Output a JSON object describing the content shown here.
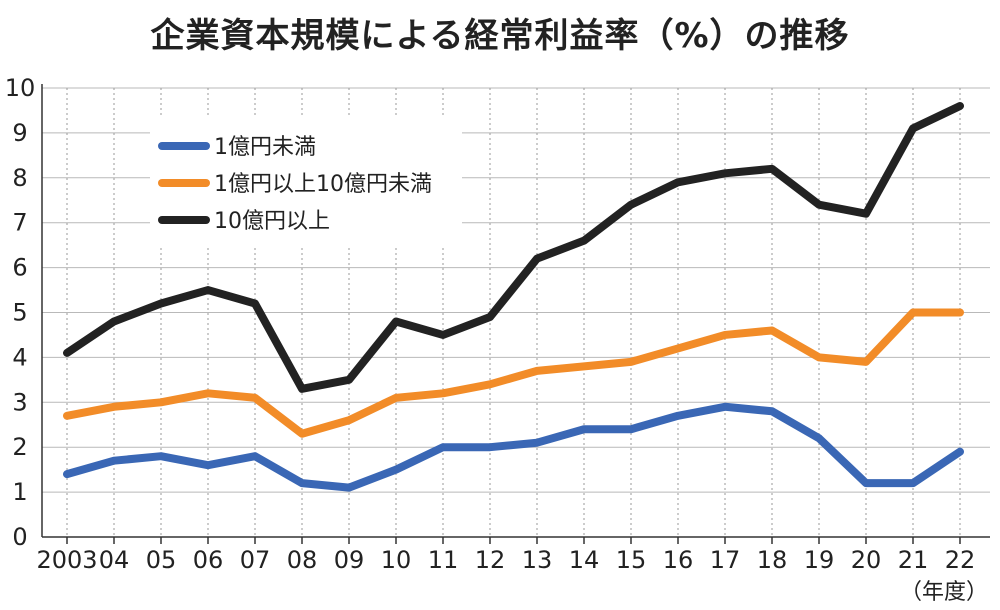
{
  "chart_data": {
    "type": "line",
    "title": "企業資本規模による経常利益率（%）の推移",
    "unit_label": "（年度）",
    "categories": [
      "2003",
      "04",
      "05",
      "06",
      "07",
      "08",
      "09",
      "10",
      "11",
      "12",
      "13",
      "14",
      "15",
      "16",
      "17",
      "18",
      "19",
      "20",
      "21",
      "22"
    ],
    "y_ticks": [
      "0",
      "1",
      "2",
      "3",
      "4",
      "5",
      "6",
      "7",
      "8",
      "9",
      "10"
    ],
    "ylim": [
      0,
      10
    ],
    "grid": "horizontal",
    "legend_position": "top-left",
    "series": [
      {
        "name": "1億円未満",
        "color": "#3a67b5",
        "values": [
          1.4,
          1.7,
          1.8,
          1.6,
          1.8,
          1.2,
          1.1,
          1.5,
          2.0,
          2.0,
          2.1,
          2.4,
          2.4,
          2.7,
          2.9,
          2.8,
          2.2,
          1.2,
          1.2,
          1.9
        ]
      },
      {
        "name": "1億円以上10億円未満",
        "color": "#f28c28",
        "values": [
          2.7,
          2.9,
          3.0,
          3.2,
          3.1,
          2.3,
          2.6,
          3.1,
          3.2,
          3.4,
          3.7,
          3.8,
          3.9,
          4.2,
          4.5,
          4.6,
          4.0,
          3.9,
          5.0,
          5.0
        ]
      },
      {
        "name": "10億円以上",
        "color": "#222222",
        "values": [
          4.1,
          4.8,
          5.2,
          5.5,
          5.2,
          3.3,
          3.5,
          4.8,
          4.5,
          4.9,
          6.2,
          6.6,
          7.4,
          7.9,
          8.1,
          8.2,
          7.4,
          7.2,
          9.1,
          9.6
        ]
      }
    ]
  }
}
